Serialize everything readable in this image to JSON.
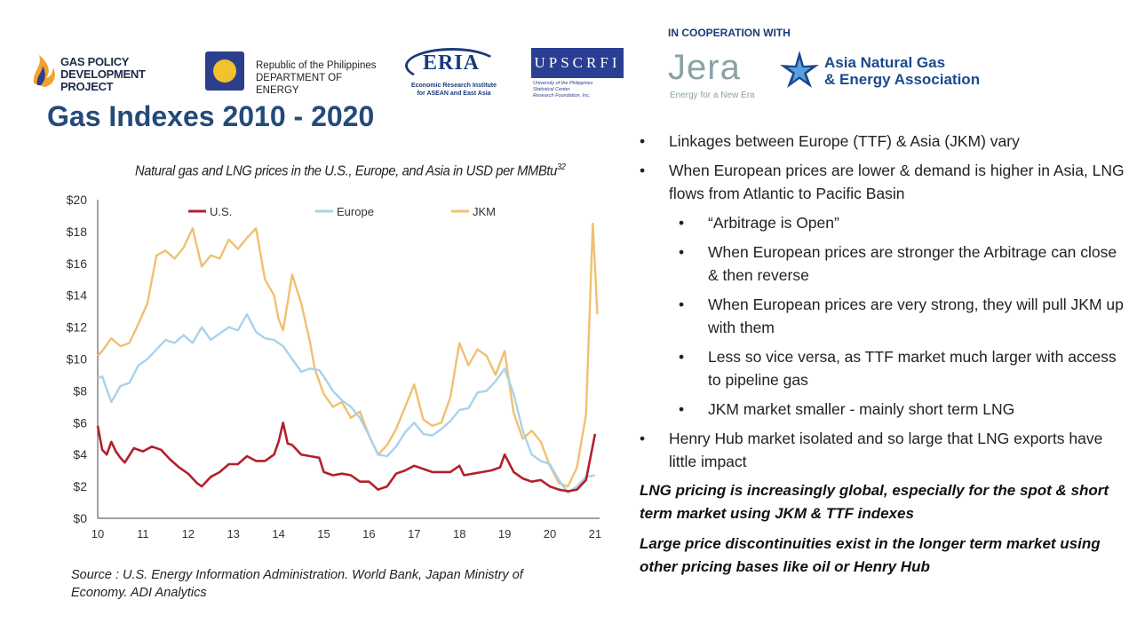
{
  "logos": {
    "gas_policy_line1": "GAS POLICY",
    "gas_policy_line2": "DEVELOPMENT PROJECT",
    "doe_line1": "Republic of the Philippines",
    "doe_line2": "DEPARTMENT OF ENERGY",
    "eria_word": "ERIA",
    "eria_sub1": "Economic Research Institute",
    "eria_sub2": "for ASEAN and East Asia",
    "upscrfi_word": "UPSCRFI",
    "upscrfi_sub1": "University of the Philippines",
    "upscrfi_sub2": "Statistical Center",
    "upscrfi_sub3": "Research Foundation, Inc.",
    "cooperation": "IN COOPERATION WITH",
    "jera_word": "Jera",
    "jera_sub": "Energy for a New Era",
    "angea_line1": "Asia Natural Gas",
    "angea_line2": "& Energy Association"
  },
  "slide": {
    "title": "Gas Indexes 2010 - 2020",
    "source": "Source : U.S. Energy Information Administration. World Bank, Japan Ministry of Economy. ADI Analytics"
  },
  "bullets": [
    {
      "level": 1,
      "text": "Linkages between Europe (TTF) & Asia (JKM) vary"
    },
    {
      "level": 1,
      "text": "When European prices are lower & demand is higher in Asia, LNG flows from Atlantic to Pacific Basin"
    },
    {
      "level": 2,
      "text": "“Arbitrage is Open”"
    },
    {
      "level": 2,
      "text": "When European prices are stronger the Arbitrage can close & then reverse"
    },
    {
      "level": 2,
      "text": "When European prices are very strong, they will pull JKM up with them"
    },
    {
      "level": 2,
      "text": "Less so vice versa, as TTF market much larger with access to pipeline gas"
    },
    {
      "level": 2,
      "text": "JKM market smaller - mainly short term LNG"
    },
    {
      "level": 1,
      "text": "Henry Hub market isolated and so large that LNG exports have little impact"
    }
  ],
  "emphasis": [
    "LNG pricing is increasingly global, especially for the spot & short term market using JKM & TTF indexes",
    "Large price discontinuities exist in the longer term market using other pricing bases like oil or Henry Hub"
  ],
  "colors": {
    "us": "#b3202a",
    "europe": "#a9d2ea",
    "jkm": "#f0c070",
    "title": "#234a7a"
  },
  "chart_data": {
    "type": "line",
    "title": "Natural gas and LNG prices in the U.S., Europe, and Asia in USD per MMBtu",
    "title_superscript": "32",
    "x_tick_labels": [
      "10",
      "11",
      "12",
      "13",
      "14",
      "15",
      "16",
      "17",
      "18",
      "19",
      "20",
      "21"
    ],
    "y_tick_labels": [
      "$0",
      "$2",
      "$4",
      "$6",
      "$8",
      "$10",
      "$12",
      "$14",
      "$16",
      "$18",
      "$20"
    ],
    "xlim": [
      2010,
      2021.1
    ],
    "ylim": [
      0,
      20
    ],
    "legend_position": "top",
    "grid": false,
    "series": [
      {
        "name": "U.S.",
        "color": "#b3202a",
        "x": [
          2010.0,
          2010.1,
          2010.2,
          2010.3,
          2010.4,
          2010.5,
          2010.6,
          2010.8,
          2011.0,
          2011.2,
          2011.4,
          2011.6,
          2011.8,
          2012.0,
          2012.2,
          2012.3,
          2012.5,
          2012.7,
          2012.9,
          2013.1,
          2013.3,
          2013.5,
          2013.7,
          2013.9,
          2014.0,
          2014.1,
          2014.2,
          2014.3,
          2014.5,
          2014.7,
          2014.9,
          2015.0,
          2015.2,
          2015.4,
          2015.6,
          2015.8,
          2016.0,
          2016.2,
          2016.4,
          2016.6,
          2016.8,
          2017.0,
          2017.2,
          2017.4,
          2017.6,
          2017.8,
          2018.0,
          2018.1,
          2018.3,
          2018.5,
          2018.7,
          2018.9,
          2019.0,
          2019.2,
          2019.4,
          2019.6,
          2019.8,
          2020.0,
          2020.2,
          2020.4,
          2020.6,
          2020.8,
          2021.0
        ],
        "values": [
          5.8,
          4.3,
          4.0,
          4.8,
          4.2,
          3.8,
          3.5,
          4.4,
          4.2,
          4.5,
          4.3,
          3.7,
          3.2,
          2.8,
          2.2,
          2.0,
          2.6,
          2.9,
          3.4,
          3.4,
          3.9,
          3.6,
          3.6,
          4.0,
          4.8,
          6.0,
          4.7,
          4.6,
          4.0,
          3.9,
          3.8,
          2.9,
          2.7,
          2.8,
          2.7,
          2.3,
          2.3,
          1.8,
          2.0,
          2.8,
          3.0,
          3.3,
          3.1,
          2.9,
          2.9,
          2.9,
          3.3,
          2.7,
          2.8,
          2.9,
          3.0,
          3.2,
          4.0,
          2.9,
          2.5,
          2.3,
          2.4,
          2.0,
          1.8,
          1.7,
          1.8,
          2.4,
          5.3
        ]
      },
      {
        "name": "Europe",
        "color": "#a9d2ea",
        "x": [
          2010.0,
          2010.1,
          2010.3,
          2010.5,
          2010.7,
          2010.9,
          2011.1,
          2011.3,
          2011.5,
          2011.7,
          2011.9,
          2012.1,
          2012.3,
          2012.5,
          2012.7,
          2012.9,
          2013.1,
          2013.3,
          2013.5,
          2013.7,
          2013.9,
          2014.1,
          2014.3,
          2014.5,
          2014.7,
          2014.9,
          2015.0,
          2015.2,
          2015.4,
          2015.6,
          2015.8,
          2016.0,
          2016.2,
          2016.4,
          2016.6,
          2016.8,
          2017.0,
          2017.2,
          2017.4,
          2017.6,
          2017.8,
          2018.0,
          2018.2,
          2018.4,
          2018.6,
          2018.8,
          2019.0,
          2019.2,
          2019.4,
          2019.6,
          2019.8,
          2020.0,
          2020.2,
          2020.4,
          2020.6,
          2020.8,
          2021.0
        ],
        "values": [
          8.8,
          8.9,
          7.3,
          8.3,
          8.5,
          9.6,
          10.0,
          10.6,
          11.2,
          11.0,
          11.5,
          11.0,
          12.0,
          11.2,
          11.6,
          12.0,
          11.8,
          12.8,
          11.7,
          11.3,
          11.2,
          10.8,
          10.0,
          9.2,
          9.4,
          9.3,
          8.9,
          8.0,
          7.4,
          7.0,
          6.3,
          5.2,
          4.0,
          3.9,
          4.5,
          5.4,
          6.0,
          5.3,
          5.2,
          5.6,
          6.1,
          6.8,
          6.9,
          7.9,
          8.0,
          8.6,
          9.4,
          7.8,
          5.5,
          4.0,
          3.6,
          3.4,
          2.4,
          1.6,
          2.0,
          2.6,
          2.7
        ]
      },
      {
        "name": "JKM",
        "color": "#f0c070",
        "x": [
          2010.0,
          2010.1,
          2010.3,
          2010.5,
          2010.7,
          2010.9,
          2011.1,
          2011.3,
          2011.5,
          2011.7,
          2011.9,
          2012.1,
          2012.3,
          2012.5,
          2012.7,
          2012.9,
          2013.1,
          2013.3,
          2013.5,
          2013.7,
          2013.9,
          2014.0,
          2014.1,
          2014.3,
          2014.5,
          2014.7,
          2014.8,
          2015.0,
          2015.2,
          2015.4,
          2015.6,
          2015.8,
          2016.0,
          2016.2,
          2016.4,
          2016.6,
          2016.8,
          2017.0,
          2017.2,
          2017.4,
          2017.6,
          2017.8,
          2018.0,
          2018.2,
          2018.4,
          2018.6,
          2018.8,
          2019.0,
          2019.2,
          2019.4,
          2019.6,
          2019.8,
          2020.0,
          2020.2,
          2020.4,
          2020.6,
          2020.8,
          2020.95,
          2021.05
        ],
        "values": [
          10.2,
          10.5,
          11.3,
          10.8,
          11.0,
          12.2,
          13.5,
          16.5,
          16.8,
          16.3,
          17.0,
          18.2,
          15.8,
          16.5,
          16.3,
          17.5,
          16.9,
          17.6,
          18.2,
          15.0,
          14.0,
          12.5,
          11.8,
          15.3,
          13.5,
          11.0,
          9.4,
          7.8,
          7.0,
          7.3,
          6.3,
          6.7,
          5.2,
          4.0,
          4.6,
          5.6,
          7.0,
          8.4,
          6.2,
          5.8,
          6.0,
          7.6,
          11.0,
          9.6,
          10.6,
          10.2,
          9.0,
          10.5,
          6.6,
          5.0,
          5.5,
          4.8,
          3.3,
          2.2,
          2.0,
          3.2,
          6.5,
          18.5,
          12.8
        ]
      }
    ]
  }
}
